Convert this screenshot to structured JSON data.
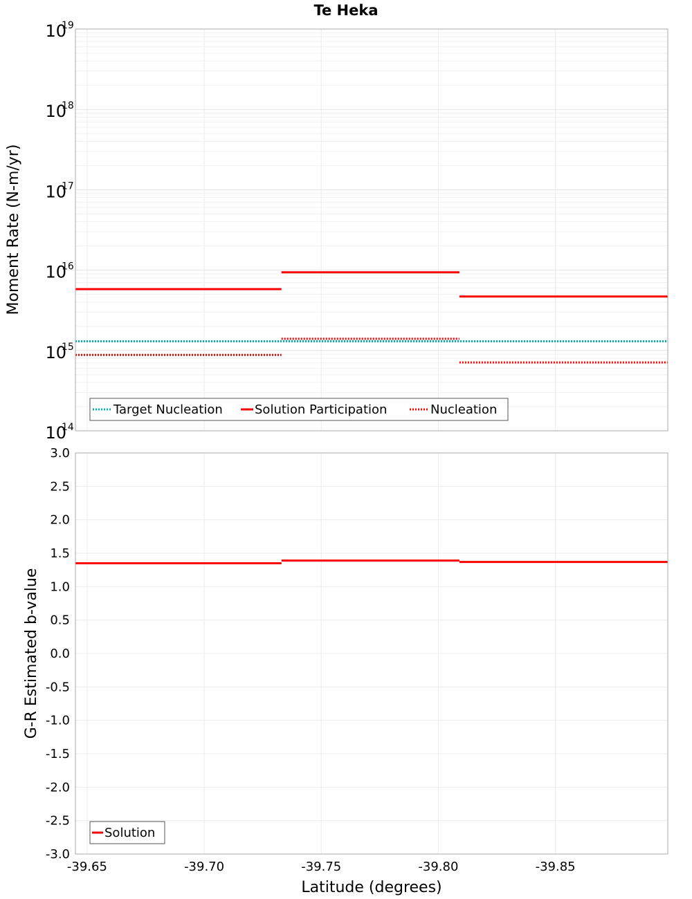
{
  "chart_data": [
    {
      "type": "line",
      "panel": "top",
      "title": "Te Heka",
      "ylabel": "Moment Rate (N-m/yr)",
      "yscale": "log",
      "ylim": [
        100000000000000.0,
        1e+19
      ],
      "xlim": [
        -39.645,
        -39.898
      ],
      "grid": true,
      "y_ticks": [
        {
          "base": "10",
          "exp": "14",
          "value": 100000000000000.0
        },
        {
          "base": "10",
          "exp": "15",
          "value": 1000000000000000.0
        },
        {
          "base": "10",
          "exp": "16",
          "value": 1e+16
        },
        {
          "base": "10",
          "exp": "17",
          "value": 1e+17
        },
        {
          "base": "10",
          "exp": "18",
          "value": 1e+18
        },
        {
          "base": "10",
          "exp": "19",
          "value": 1e+19
        }
      ],
      "legend_position": "bottom-left",
      "series": [
        {
          "name": "Target Nucleation",
          "style": "dotted",
          "color": "#00b4b4",
          "segments": [
            {
              "x0": -39.645,
              "x1": -39.898,
              "y": 1300000000000000.0
            }
          ]
        },
        {
          "name": "Solution Participation",
          "style": "solid",
          "color": "#ff0000",
          "segments": [
            {
              "x0": -39.645,
              "x1": -39.733,
              "y": 5800000000000000.0
            },
            {
              "x0": -39.733,
              "x1": -39.809,
              "y": 9400000000000000.0
            },
            {
              "x0": -39.809,
              "x1": -39.898,
              "y": 4700000000000000.0
            }
          ]
        },
        {
          "name": "Nucleation",
          "style": "dotted",
          "color": "#ff0000",
          "segments": [
            {
              "x0": -39.645,
              "x1": -39.733,
              "y": 880000000000000.0
            },
            {
              "x0": -39.733,
              "x1": -39.809,
              "y": 1400000000000000.0
            },
            {
              "x0": -39.809,
              "x1": -39.898,
              "y": 710000000000000.0
            }
          ]
        }
      ]
    },
    {
      "type": "line",
      "panel": "bottom",
      "xlabel": "Latitude (degrees)",
      "ylabel": "G-R Estimated b-value",
      "ylim": [
        -3.0,
        3.0
      ],
      "xlim": [
        -39.645,
        -39.898
      ],
      "grid": true,
      "x_ticks": [
        "-39.65",
        "-39.70",
        "-39.75",
        "-39.80",
        "-39.85"
      ],
      "y_ticks": [
        "3.0",
        "2.5",
        "2.0",
        "1.5",
        "1.0",
        "0.5",
        "0.0",
        "-0.5",
        "-1.0",
        "-1.5",
        "-2.0",
        "-2.5",
        "-3.0"
      ],
      "legend_position": "bottom-left",
      "series": [
        {
          "name": "Solution",
          "style": "solid",
          "color": "#ff0000",
          "segments": [
            {
              "x0": -39.645,
              "x1": -39.733,
              "y": 1.35
            },
            {
              "x0": -39.733,
              "x1": -39.809,
              "y": 1.39
            },
            {
              "x0": -39.809,
              "x1": -39.898,
              "y": 1.37
            }
          ]
        }
      ]
    }
  ]
}
